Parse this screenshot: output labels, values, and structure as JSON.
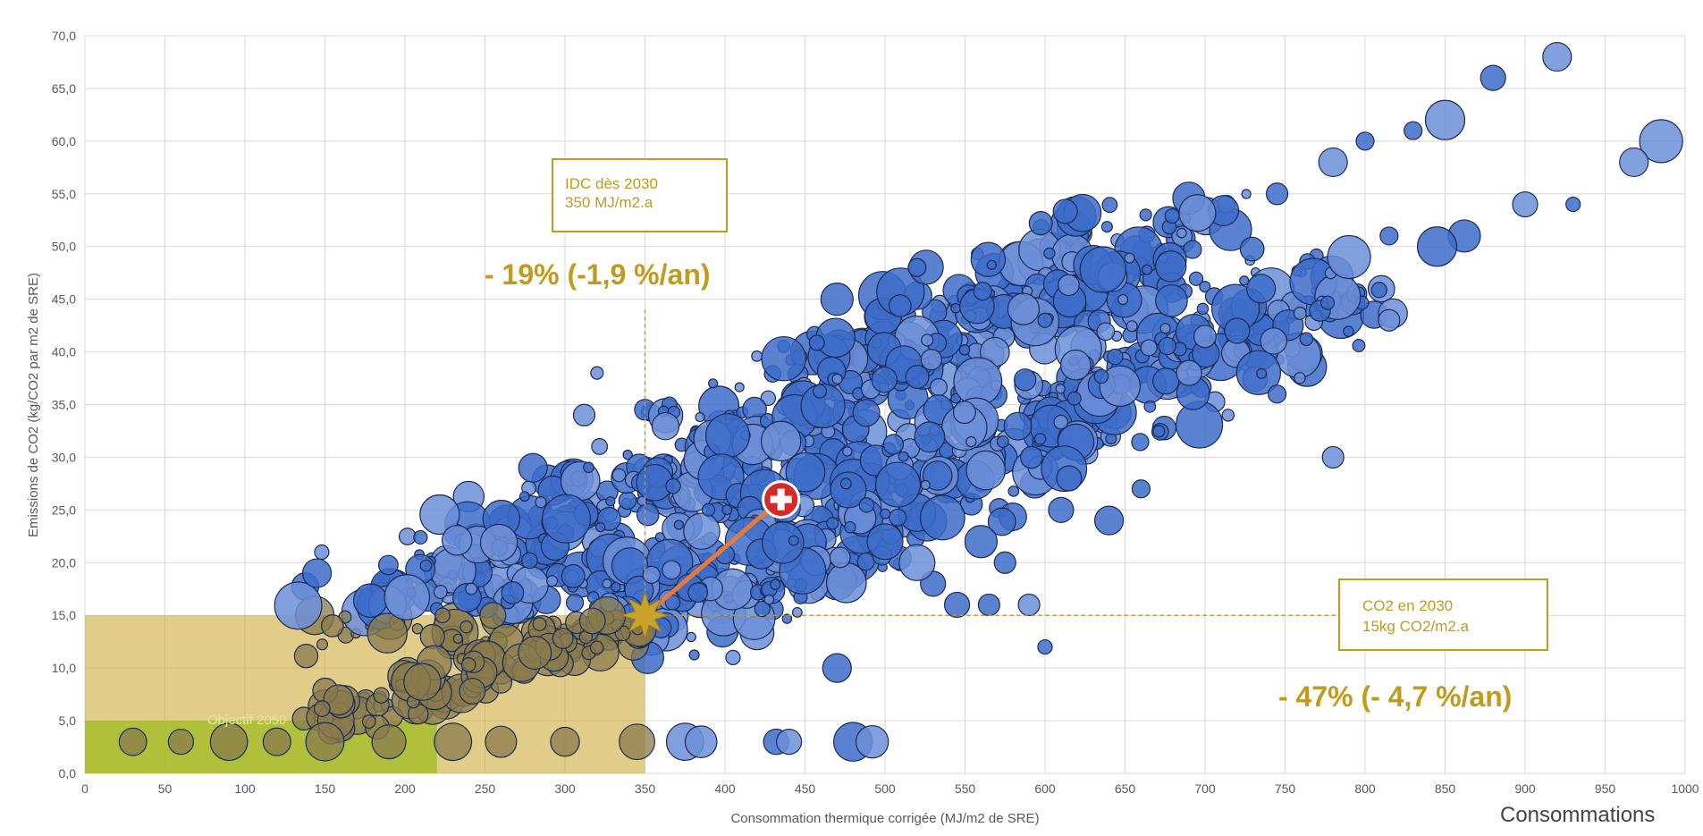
{
  "colors": {
    "bubble_fill": "#3d6cc9",
    "bubble_stroke": "#1a2b55",
    "bubble_light": "#6d8fd8",
    "accent_gold": "#c29a1c",
    "target_fill": "#c9a227",
    "green_zone": "#a8bd2e",
    "bubble_in_zone": "#8a7b4c",
    "arrow": "#e57a3a",
    "swiss_red": "#d42a2a",
    "grid": "#d9d9d9"
  },
  "icons": {
    "swiss_marker": "swiss-cross-icon",
    "target_marker": "star-icon"
  },
  "corner_label": "Consommations",
  "chart_data": {
    "type": "scatter",
    "xlabel": "Consommation thermique corrigée (MJ/m2 de SRE)",
    "ylabel": "Emissions de CO2 (kg/CO2 par m2 de SRE)",
    "xlim": [
      0,
      1000
    ],
    "ylim": [
      0,
      70
    ],
    "x_ticks": [
      "0",
      "50",
      "100",
      "150",
      "200",
      "250",
      "300",
      "350",
      "400",
      "450",
      "500",
      "550",
      "600",
      "650",
      "700",
      "750",
      "800",
      "850",
      "900",
      "950",
      "1000"
    ],
    "y_ticks": [
      "0,0",
      "5,0",
      "10,0",
      "15,0",
      "20,0",
      "25,0",
      "30,0",
      "35,0",
      "40,0",
      "45,0",
      "50,0",
      "55,0",
      "60,0",
      "65,0",
      "70,0"
    ],
    "grid": true,
    "idc_target": {
      "x": 350,
      "label_line1": "IDC dès 2030",
      "label_line2": "350 MJ/m2.a"
    },
    "co2_target": {
      "y": 15,
      "label_line1": "CO2 en 2030",
      "label_line2": "15kg CO2/m2.a"
    },
    "reduction_idc": "- 19% (-1,9 %/an)",
    "reduction_co2": "- 47% (- 4,7 %/an)",
    "objective_2050": {
      "x_max": 220,
      "y_max": 5,
      "label": "Objectif 2050"
    },
    "target_zone": {
      "x_max": 350,
      "y_max": 15
    },
    "swiss_average": {
      "x": 435,
      "y": 26
    },
    "target_point": {
      "x": 350,
      "y": 15
    },
    "band_upper": {
      "x_start": 180,
      "y_start": 14,
      "x_end": 680,
      "y_end": 52,
      "spread_x": 55,
      "spread_y": 4
    },
    "band_lower": {
      "x_start": 330,
      "y_start": 14,
      "x_end": 780,
      "y_end": 46,
      "spread_x": 55,
      "spread_y": 4
    },
    "low_row": {
      "y": 3,
      "x": [
        30,
        60,
        90,
        120,
        150,
        190,
        230,
        260,
        300,
        345,
        375,
        385,
        432,
        440,
        480,
        492
      ]
    },
    "outliers": [
      {
        "x": 145,
        "y": 19,
        "r": 16
      },
      {
        "x": 148,
        "y": 21,
        "r": 8
      },
      {
        "x": 320,
        "y": 38,
        "r": 7
      },
      {
        "x": 312,
        "y": 34,
        "r": 12
      },
      {
        "x": 280,
        "y": 29,
        "r": 16
      },
      {
        "x": 470,
        "y": 45,
        "r": 18
      },
      {
        "x": 520,
        "y": 48,
        "r": 10
      },
      {
        "x": 600,
        "y": 43,
        "r": 8
      },
      {
        "x": 920,
        "y": 68,
        "r": 16
      },
      {
        "x": 880,
        "y": 66,
        "r": 14
      },
      {
        "x": 850,
        "y": 62,
        "r": 22
      },
      {
        "x": 830,
        "y": 61,
        "r": 10
      },
      {
        "x": 985,
        "y": 60,
        "r": 24
      },
      {
        "x": 968,
        "y": 58,
        "r": 16
      },
      {
        "x": 930,
        "y": 54,
        "r": 8
      },
      {
        "x": 900,
        "y": 54,
        "r": 14
      },
      {
        "x": 862,
        "y": 51,
        "r": 18
      },
      {
        "x": 845,
        "y": 50,
        "r": 22
      },
      {
        "x": 790,
        "y": 49,
        "r": 24
      },
      {
        "x": 815,
        "y": 51,
        "r": 10
      },
      {
        "x": 780,
        "y": 58,
        "r": 16
      },
      {
        "x": 800,
        "y": 60,
        "r": 10
      },
      {
        "x": 745,
        "y": 55,
        "r": 12
      },
      {
        "x": 815,
        "y": 43,
        "r": 12
      },
      {
        "x": 745,
        "y": 36,
        "r": 10
      },
      {
        "x": 780,
        "y": 30,
        "r": 12
      },
      {
        "x": 720,
        "y": 42,
        "r": 14
      },
      {
        "x": 735,
        "y": 46,
        "r": 16
      },
      {
        "x": 640,
        "y": 24,
        "r": 16
      },
      {
        "x": 610,
        "y": 25,
        "r": 14
      },
      {
        "x": 615,
        "y": 28,
        "r": 14
      },
      {
        "x": 660,
        "y": 27,
        "r": 10
      },
      {
        "x": 565,
        "y": 16,
        "r": 12
      },
      {
        "x": 590,
        "y": 16,
        "r": 12
      },
      {
        "x": 470,
        "y": 10,
        "r": 16
      },
      {
        "x": 405,
        "y": 11,
        "r": 8
      },
      {
        "x": 600,
        "y": 12,
        "r": 8
      },
      {
        "x": 530,
        "y": 18,
        "r": 14
      },
      {
        "x": 690,
        "y": 38,
        "r": 14
      },
      {
        "x": 560,
        "y": 22,
        "r": 18
      },
      {
        "x": 520,
        "y": 20,
        "r": 20
      },
      {
        "x": 545,
        "y": 16,
        "r": 14
      },
      {
        "x": 500,
        "y": 22,
        "r": 20
      },
      {
        "x": 575,
        "y": 20,
        "r": 12
      }
    ]
  }
}
